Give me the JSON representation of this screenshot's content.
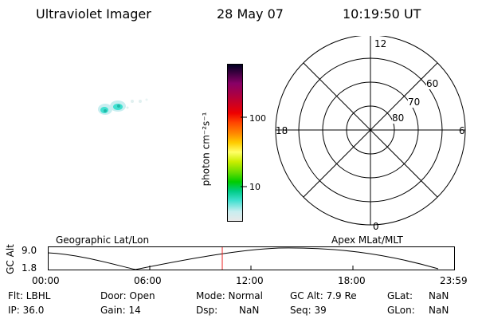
{
  "header": {
    "instrument": "Ultraviolet Imager",
    "date": "28 May 07",
    "time": "10:19:50 UT"
  },
  "colorbar": {
    "unit_label": "photon cm⁻²s⁻¹",
    "tick_100": "100",
    "tick_10": "10",
    "colors": [
      "#e8e8e8",
      "#c8eef0",
      "#40e0d0",
      "#00cc88",
      "#00cc00",
      "#66dd00",
      "#ccee00",
      "#ffff66",
      "#ffcc00",
      "#ff8800",
      "#ff4400",
      "#ee0000",
      "#cc0022",
      "#aa0044",
      "#880066",
      "#440044",
      "#000022"
    ]
  },
  "polar": {
    "label_12": "12",
    "label_18": "18",
    "label_6": "6",
    "label_0": "0",
    "lat_60": "60",
    "lat_70": "70",
    "lat_80": "80"
  },
  "timeline": {
    "left_title": "Geographic Lat/Lon",
    "right_title": "Apex MLat/MLT",
    "ylabel": "GC Alt",
    "y_top": "9.0",
    "y_bottom": "1.8",
    "ticks": [
      "00:00",
      "06:00",
      "12:00",
      "18:00",
      "23:59"
    ]
  },
  "info": {
    "flt": "Flt: LBHL",
    "ip": "IP: 36.0",
    "door": "Door: Open",
    "gain": "Gain: 14",
    "mode": "Mode: Normal",
    "dsp_label": "Dsp:",
    "dsp_value": "NaN",
    "gcalt": "GC Alt: 7.9 Re",
    "seq": "Seq: 39",
    "glat_label": "GLat:",
    "glat_value": "NaN",
    "glon_label": "GLon:",
    "glon_value": "NaN"
  }
}
